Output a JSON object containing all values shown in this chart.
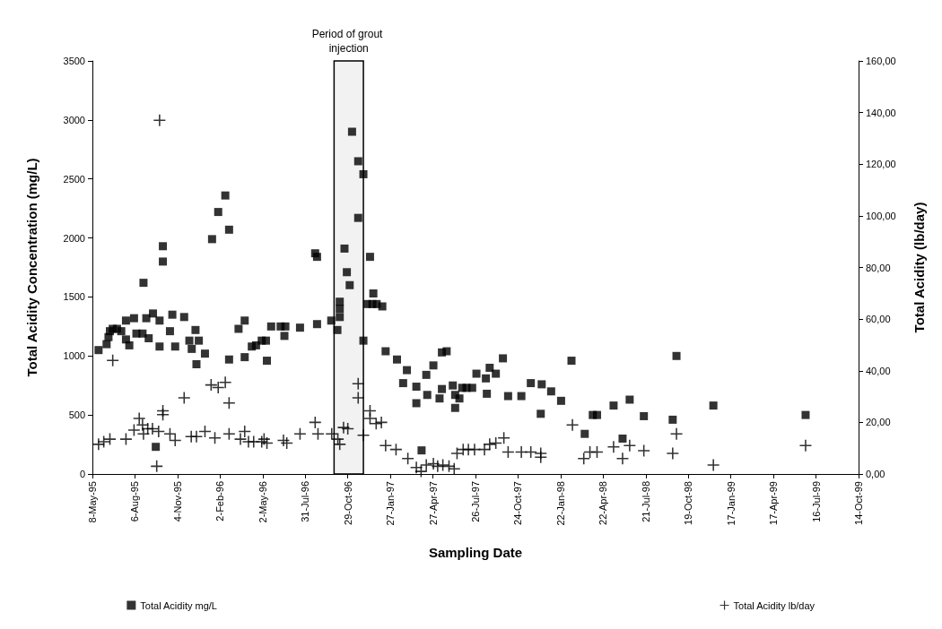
{
  "chart_data": {
    "type": "scatter",
    "xlabel": "Sampling Date",
    "ylabel": "Total Acidity Concentration (mg/L)",
    "y2label": "Total Acidity (lb/day)",
    "xlim": [
      "1995-05-08",
      "1999-10-14"
    ],
    "xticks": [
      {
        "value": "1995-05-08",
        "label": "8-May-95"
      },
      {
        "value": "1995-08-06",
        "label": "6-Aug-95"
      },
      {
        "value": "1995-11-04",
        "label": "4-Nov-95"
      },
      {
        "value": "1996-02-02",
        "label": "2-Feb-96"
      },
      {
        "value": "1996-05-02",
        "label": "2-May-96"
      },
      {
        "value": "1996-07-31",
        "label": "31-Jul-96"
      },
      {
        "value": "1996-10-29",
        "label": "29-Oct-96"
      },
      {
        "value": "1997-01-27",
        "label": "27-Jan-97"
      },
      {
        "value": "1997-04-27",
        "label": "27-Apr-97"
      },
      {
        "value": "1997-07-26",
        "label": "26-Jul-97"
      },
      {
        "value": "1997-10-24",
        "label": "24-Oct-97"
      },
      {
        "value": "1998-01-22",
        "label": "22-Jan-98"
      },
      {
        "value": "1998-04-22",
        "label": "22-Apr-98"
      },
      {
        "value": "1998-07-21",
        "label": "21-Jul-98"
      },
      {
        "value": "1998-10-19",
        "label": "19-Oct-98"
      },
      {
        "value": "1999-01-17",
        "label": "17-Jan-99"
      },
      {
        "value": "1999-04-17",
        "label": "17-Apr-99"
      },
      {
        "value": "1999-07-16",
        "label": "16-Jul-99"
      },
      {
        "value": "1999-10-14",
        "label": "14-Oct-99"
      }
    ],
    "ylim": [
      0,
      3500
    ],
    "yticks": [
      0,
      500,
      1000,
      1500,
      2000,
      2500,
      3000,
      3500
    ],
    "y2lim": [
      0,
      160
    ],
    "y2ticks": [
      {
        "value": 0,
        "label": "0,00"
      },
      {
        "value": 20,
        "label": "20,00"
      },
      {
        "value": 40,
        "label": "40,00"
      },
      {
        "value": 60,
        "label": "60,00"
      },
      {
        "value": 80,
        "label": "80,00"
      },
      {
        "value": 100,
        "label": "100,00"
      },
      {
        "value": 120,
        "label": "120,00"
      },
      {
        "value": 140,
        "label": "140,00"
      },
      {
        "value": 160,
        "label": "160,00"
      }
    ],
    "grid": false,
    "legend": "bottom",
    "bands": [
      {
        "axis": "x",
        "from": "1996-09-30",
        "to": "1996-12-01",
        "label": "Period of grout injection"
      }
    ],
    "series": [
      {
        "name": "Total Acidity mg/L",
        "color": "#000000",
        "marker": "square",
        "x": [
          "1995-05-21",
          "1995-06-07",
          "1995-06-11",
          "1995-06-14",
          "1995-06-20",
          "1995-06-29",
          "1995-07-08",
          "1995-07-18",
          "1995-07-25",
          "1995-07-18",
          "1995-08-04",
          "1995-08-09",
          "1995-08-22",
          "1995-08-24",
          "1995-08-30",
          "1995-09-04",
          "1995-09-13",
          "1995-09-19",
          "1995-09-27",
          "1995-09-27",
          "1995-10-04",
          "1995-10-04",
          "1995-10-24",
          "1995-10-19",
          "1995-10-30",
          "1995-11-18",
          "1995-11-29",
          "1995-12-12",
          "1995-12-04",
          "1995-12-19",
          "1995-12-14",
          "1996-01-01",
          "1996-01-16",
          "1996-01-29",
          "1996-02-13",
          "1996-02-21",
          "1996-02-21",
          "1996-03-12",
          "1996-03-25",
          "1996-03-25",
          "1996-04-09",
          "1996-04-18",
          "1996-04-30",
          "1996-05-09",
          "1996-05-11",
          "1996-05-20",
          "1996-06-09",
          "1996-06-19",
          "1996-06-17",
          "1996-07-20",
          "1996-08-21",
          "1996-08-25",
          "1996-08-25",
          "1996-09-24",
          "1996-10-07",
          "1996-10-12",
          "1996-10-12",
          "1996-10-12",
          "1996-10-22",
          "1996-10-27",
          "1996-11-02",
          "1996-11-07",
          "1996-11-20",
          "1996-11-20",
          "1996-12-01",
          "1996-12-01",
          "1996-12-15",
          "1996-12-22",
          "1996-12-09",
          "1996-12-20",
          "1996-12-29",
          "1997-01-10",
          "1997-01-17",
          "1997-02-10",
          "1997-03-03",
          "1997-02-23",
          "1997-03-23",
          "1997-03-23",
          "1997-04-13",
          "1997-04-15",
          "1997-04-28",
          "1997-04-03",
          "1997-05-16",
          "1997-05-26",
          "1997-05-11",
          "1997-05-16",
          "1997-06-08",
          "1997-06-13",
          "1997-06-13",
          "1997-06-22",
          "1997-06-28",
          "1997-07-07",
          "1997-07-19",
          "1997-07-28",
          "1997-08-19",
          "1997-08-17",
          "1997-08-25",
          "1997-09-07",
          "1997-09-22",
          "1997-10-03",
          "1997-10-31",
          "1997-11-20",
          "1997-12-13",
          "1997-12-11",
          "1998-01-02",
          "1998-01-23",
          "1998-02-14",
          "1998-03-14",
          "1998-03-31",
          "1998-04-09",
          "1998-05-14",
          "1998-06-02",
          "1998-06-17",
          "1998-07-17",
          "1998-09-24",
          "1998-09-16",
          "1998-12-11",
          "1999-06-24"
        ],
        "values": [
          1050,
          1100,
          1160,
          1210,
          1230,
          1230,
          1210,
          1140,
          1090,
          1300,
          1320,
          1190,
          1190,
          1620,
          1320,
          1150,
          1360,
          230,
          1300,
          1080,
          1800,
          1930,
          1350,
          1210,
          1080,
          1330,
          1130,
          1220,
          1060,
          1130,
          930,
          1020,
          1990,
          2220,
          2360,
          2070,
          970,
          1230,
          1300,
          990,
          1080,
          1090,
          1130,
          1130,
          960,
          1250,
          1250,
          1250,
          1170,
          1240,
          1870,
          1840,
          1270,
          1300,
          1220,
          1330,
          1400,
          1460,
          1910,
          1710,
          1600,
          2900,
          2650,
          2170,
          2540,
          1130,
          1840,
          1530,
          1440,
          1440,
          1440,
          1420,
          1040,
          970,
          880,
          770,
          740,
          600,
          840,
          670,
          920,
          200,
          1030,
          1040,
          640,
          720,
          750,
          560,
          670,
          640,
          730,
          730,
          730,
          850,
          680,
          810,
          900,
          850,
          980,
          660,
          660,
          770,
          760,
          510,
          700,
          620,
          960,
          340,
          500,
          500,
          580,
          300,
          630,
          490,
          1000,
          460,
          580,
          500
        ]
      },
      {
        "name": "Total Acidity lb/day",
        "color": "#000000",
        "marker": "cross",
        "axis": "y2",
        "x": [
          "1995-05-21",
          "1995-06-01",
          "1995-06-14",
          "1995-06-20",
          "1995-07-18",
          "1995-08-04",
          "1995-08-15",
          "1995-08-22",
          "1995-08-24",
          "1995-09-02",
          "1995-09-12",
          "1995-09-25",
          "1995-10-04",
          "1995-10-04",
          "1995-09-21",
          "1995-09-27",
          "1995-10-19",
          "1995-10-30",
          "1995-11-18",
          "1995-12-03",
          "1995-12-14",
          "1996-01-01",
          "1996-01-22",
          "1996-01-14",
          "1996-01-29",
          "1996-02-13",
          "1996-02-21",
          "1996-02-21",
          "1996-03-16",
          "1996-03-25",
          "1996-04-02",
          "1996-04-13",
          "1996-04-30",
          "1996-05-05",
          "1996-05-11",
          "1996-06-15",
          "1996-06-22",
          "1996-07-20",
          "1996-08-21",
          "1996-08-27",
          "1996-09-25",
          "1996-10-08",
          "1996-10-12",
          "1996-10-20",
          "1996-10-29",
          "1996-11-20",
          "1996-11-20",
          "1996-12-01",
          "1996-12-15",
          "1996-12-15",
          "1996-12-28",
          "1997-01-08",
          "1997-01-17",
          "1997-02-08",
          "1997-03-05",
          "1997-03-23",
          "1997-04-02",
          "1997-04-13",
          "1997-04-28",
          "1997-05-07",
          "1997-05-18",
          "1997-05-31",
          "1997-06-11",
          "1997-06-17",
          "1997-06-30",
          "1997-07-11",
          "1997-07-24",
          "1997-08-14",
          "1997-08-25",
          "1997-09-07",
          "1997-09-24",
          "1997-10-03",
          "1997-10-31",
          "1997-11-20",
          "1997-12-11",
          "1997-12-11",
          "1998-02-16",
          "1998-03-12",
          "1998-03-25",
          "1998-04-09",
          "1998-05-14",
          "1998-06-02",
          "1998-06-17",
          "1998-07-17",
          "1998-09-24",
          "1998-09-16",
          "1998-12-11",
          "1999-06-24"
        ],
        "values": [
          11.5,
          12.5,
          13.5,
          44,
          13.5,
          17,
          21.5,
          19,
          15.5,
          17.5,
          17.5,
          16.5,
          24.5,
          23,
          3,
          137,
          15.5,
          13,
          29.5,
          14.5,
          14.5,
          16.5,
          14,
          34.5,
          33.5,
          35.5,
          27.5,
          15.5,
          13.5,
          16.5,
          12.5,
          12.5,
          12.5,
          13.5,
          12,
          13,
          12,
          15.5,
          20,
          15.5,
          15.5,
          13.5,
          11.5,
          18,
          17.5,
          35,
          29.5,
          15,
          24.5,
          21.5,
          19.5,
          20,
          11,
          9.5,
          6,
          2.5,
          1,
          3.5,
          4,
          3,
          3.5,
          3,
          2,
          8,
          9.5,
          9.5,
          9.5,
          9.5,
          11.5,
          12,
          14,
          8.5,
          8.5,
          8.5,
          8,
          6.5,
          19,
          6,
          8.5,
          8.5,
          10.5,
          6,
          11,
          9,
          15.5,
          8,
          3.5,
          11
        ]
      }
    ]
  }
}
